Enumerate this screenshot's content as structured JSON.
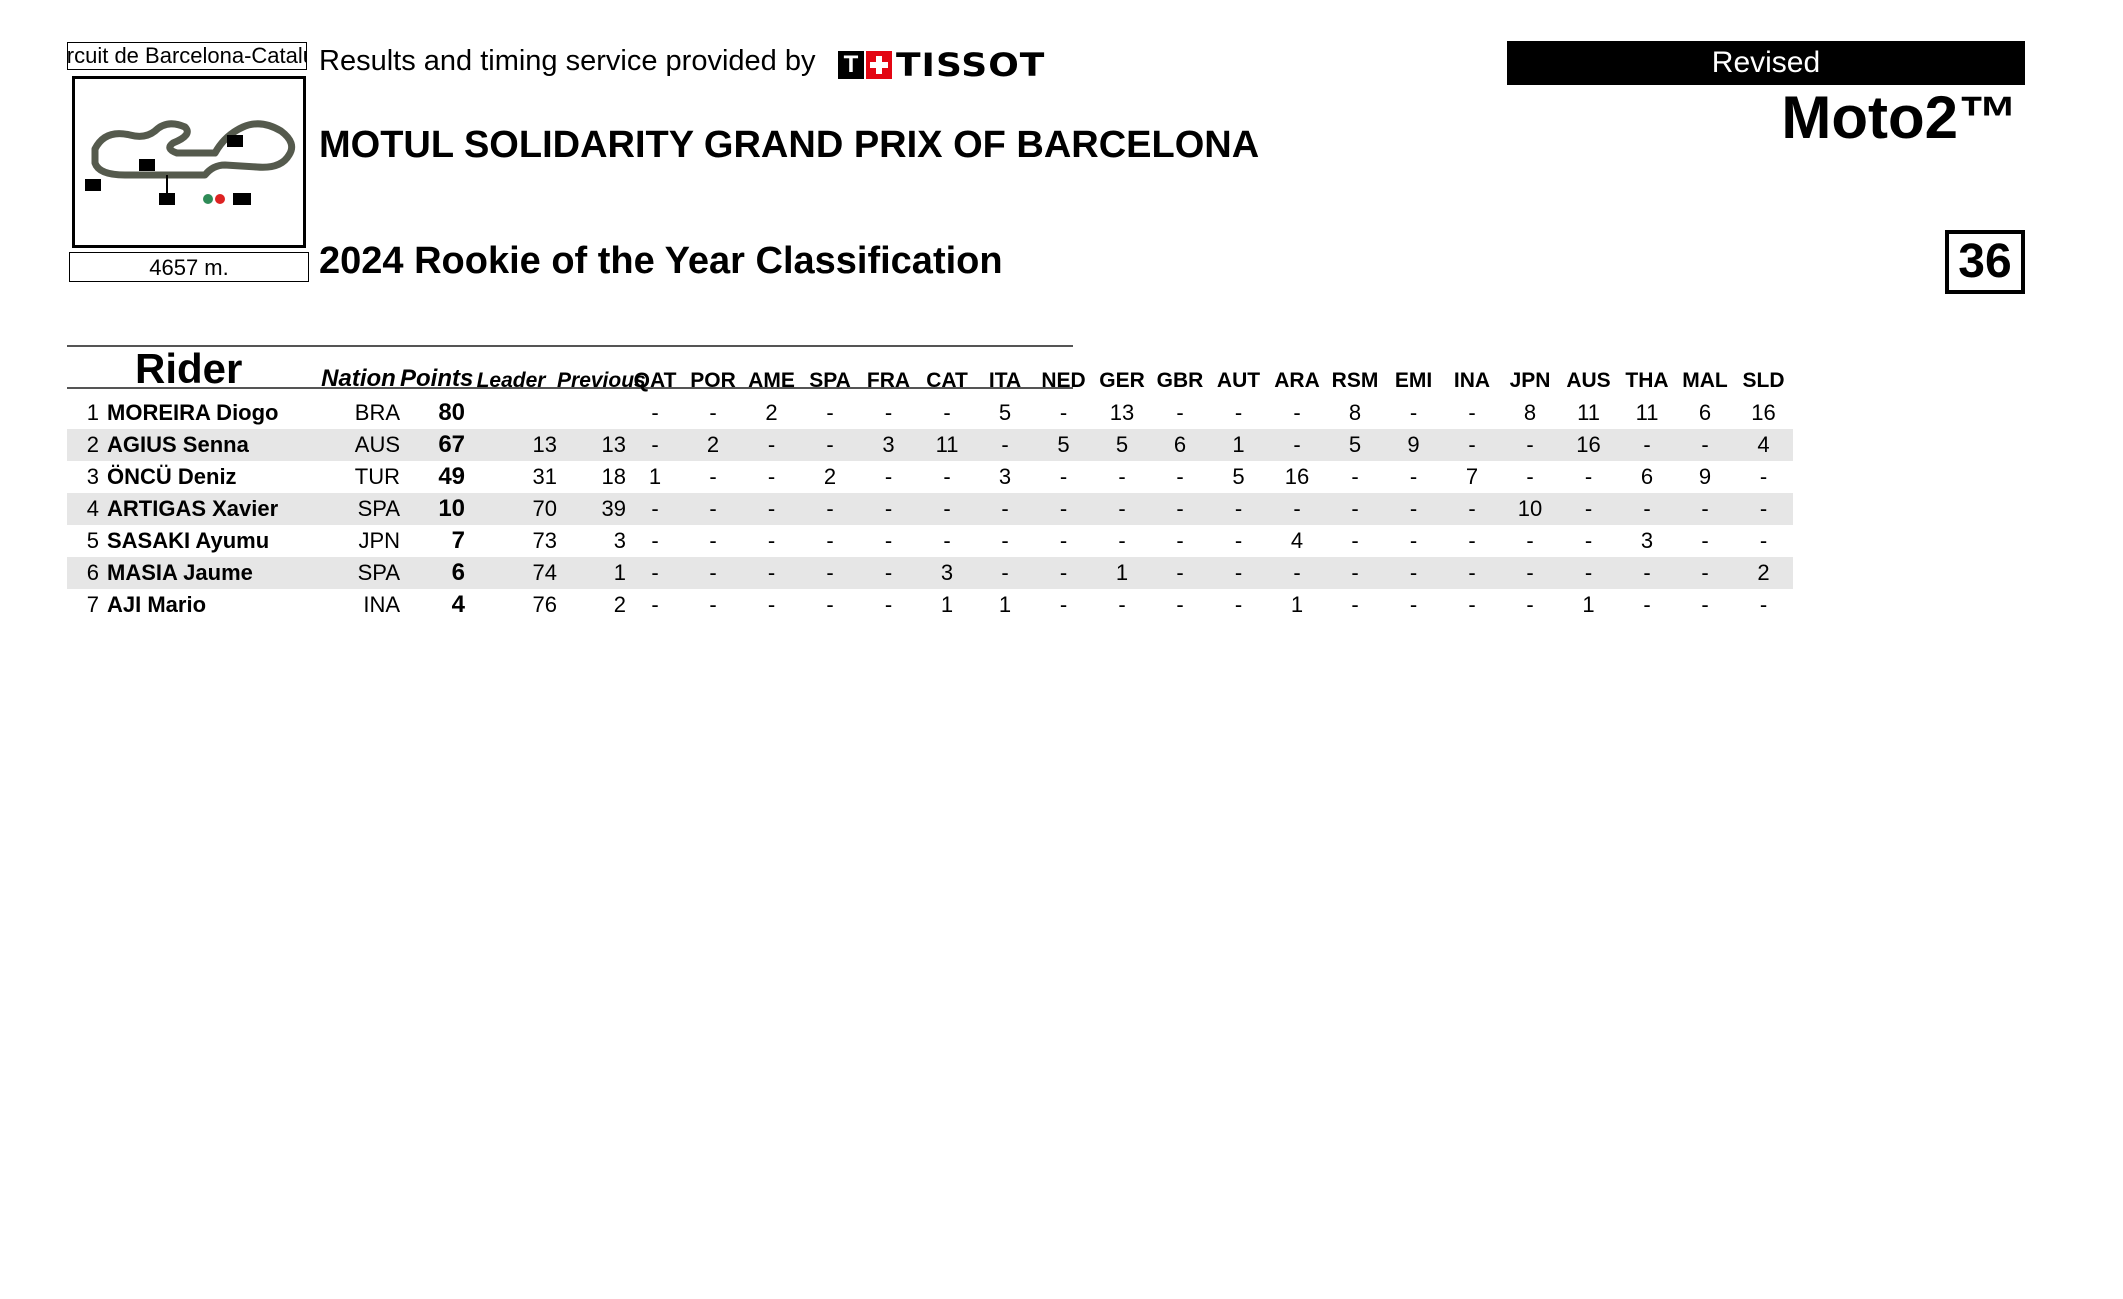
{
  "header": {
    "circuit_name": "Circuit de Barcelona-Catalunya",
    "circuit_length": "4657 m.",
    "timing_text": "Results and timing service provided by",
    "sponsor": "TISSOT",
    "event_title": "MOTUL SOLIDARITY GRAND PRIX OF BARCELONA",
    "classification_title": "2024 Rookie of the Year Classification",
    "status_badge": "Revised",
    "category": "Moto2™",
    "page_number": "36"
  },
  "table": {
    "columns": {
      "rider": "Rider",
      "nation": "Nation",
      "points": "Points",
      "leader": "Leader",
      "previous": "Previous",
      "races": [
        "QAT",
        "POR",
        "AME",
        "SPA",
        "FRA",
        "CAT",
        "ITA",
        "NED",
        "GER",
        "GBR",
        "AUT",
        "ARA",
        "RSM",
        "EMI",
        "INA",
        "JPN",
        "AUS",
        "THA",
        "MAL",
        "SLD"
      ]
    },
    "rows": [
      {
        "pos": "1",
        "name": "MOREIRA Diogo",
        "nation": "BRA",
        "points": "80",
        "leader": "",
        "previous": "",
        "races": [
          "-",
          "-",
          "2",
          "-",
          "-",
          "-",
          "5",
          "-",
          "13",
          "-",
          "-",
          "-",
          "8",
          "-",
          "-",
          "8",
          "11",
          "11",
          "6",
          "16"
        ]
      },
      {
        "pos": "2",
        "name": "AGIUS Senna",
        "nation": "AUS",
        "points": "67",
        "leader": "13",
        "previous": "13",
        "races": [
          "-",
          "2",
          "-",
          "-",
          "3",
          "11",
          "-",
          "5",
          "5",
          "6",
          "1",
          "-",
          "5",
          "9",
          "-",
          "-",
          "16",
          "-",
          "-",
          "4"
        ]
      },
      {
        "pos": "3",
        "name": "ÖNCÜ Deniz",
        "nation": "TUR",
        "points": "49",
        "leader": "31",
        "previous": "18",
        "races": [
          "1",
          "-",
          "-",
          "2",
          "-",
          "-",
          "3",
          "-",
          "-",
          "-",
          "5",
          "16",
          "-",
          "-",
          "7",
          "-",
          "-",
          "6",
          "9",
          "-"
        ]
      },
      {
        "pos": "4",
        "name": "ARTIGAS Xavier",
        "nation": "SPA",
        "points": "10",
        "leader": "70",
        "previous": "39",
        "races": [
          "-",
          "-",
          "-",
          "-",
          "-",
          "-",
          "-",
          "-",
          "-",
          "-",
          "-",
          "-",
          "-",
          "-",
          "-",
          "10",
          "-",
          "-",
          "-",
          "-"
        ]
      },
      {
        "pos": "5",
        "name": "SASAKI Ayumu",
        "nation": "JPN",
        "points": "7",
        "leader": "73",
        "previous": "3",
        "races": [
          "-",
          "-",
          "-",
          "-",
          "-",
          "-",
          "-",
          "-",
          "-",
          "-",
          "-",
          "4",
          "-",
          "-",
          "-",
          "-",
          "-",
          "3",
          "-",
          "-"
        ]
      },
      {
        "pos": "6",
        "name": "MASIA Jaume",
        "nation": "SPA",
        "points": "6",
        "leader": "74",
        "previous": "1",
        "races": [
          "-",
          "-",
          "-",
          "-",
          "-",
          "3",
          "-",
          "-",
          "1",
          "-",
          "-",
          "-",
          "-",
          "-",
          "-",
          "-",
          "-",
          "-",
          "-",
          "2"
        ]
      },
      {
        "pos": "7",
        "name": "AJI Mario",
        "nation": "INA",
        "points": "4",
        "leader": "76",
        "previous": "2",
        "races": [
          "-",
          "-",
          "-",
          "-",
          "-",
          "1",
          "1",
          "-",
          "-",
          "-",
          "-",
          "1",
          "-",
          "-",
          "-",
          "-",
          "1",
          "-",
          "-",
          "-"
        ]
      }
    ]
  }
}
